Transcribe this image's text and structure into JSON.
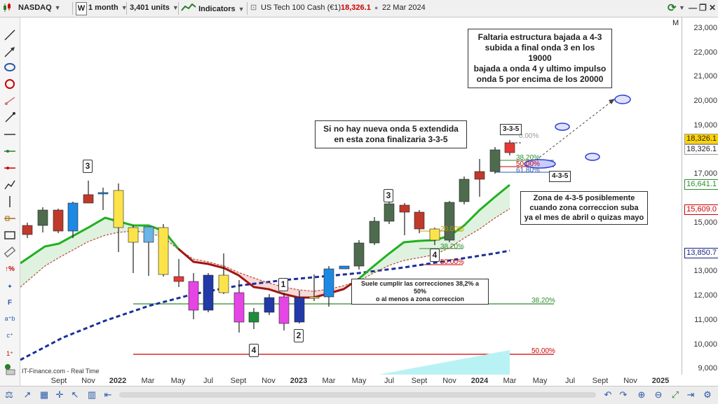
{
  "toolbar": {
    "symbol": "NASDAQ",
    "period_icon": "W",
    "timeframe": "1 month",
    "units": "3,401 units",
    "indicators": "Indicators",
    "instrument": "US Tech 100 Cash (€1)",
    "last_price": "18,326.1",
    "date": "22 Mar 2024",
    "colors": {
      "price": "#cc0000",
      "accent": "#2a5aa8"
    }
  },
  "chart": {
    "scale_marker": "M",
    "credit": "IT-Finance.com - Real Time",
    "y_ticks": [
      "23,000",
      "22,000",
      "21,000",
      "20,000",
      "19,000",
      "18,000",
      "17,000",
      "16,000",
      "15,000",
      "14,000",
      "13,000",
      "12,000",
      "11,000",
      "10,000",
      "9,000"
    ],
    "price_badges": [
      {
        "text": "18,326.1",
        "color": "#222",
        "bg": "#ffd400"
      },
      {
        "text": "18,326.1",
        "color": "#222",
        "bg": "#ffffff"
      },
      {
        "text": "16,641.1",
        "color": "#2e8b2e",
        "bg": "#ffffff"
      },
      {
        "text": "15,609.0",
        "color": "#cc0000",
        "bg": "#ffffff"
      },
      {
        "text": "13,850.7",
        "color": "#1a237e",
        "bg": "#ffffff"
      }
    ],
    "x_labels": [
      "Sept",
      "Nov",
      "2022",
      "Mar",
      "May",
      "Jul",
      "Sept",
      "Nov",
      "2023",
      "Mar",
      "May",
      "Jul",
      "Sept",
      "Nov",
      "2024",
      "Mar",
      "May",
      "Jul",
      "Sept",
      "Nov",
      "2025"
    ],
    "annotations": {
      "top_right": [
        "Faltaria estructura bajada a 4-3",
        "subida a final onda 3 en los 19000",
        "bajada a onda 4 y ultimo impulso",
        "onda 5 por encima de los 20000"
      ],
      "center": [
        "Si no hay nueva onda 5 extendida",
        "en esta zona finalizaria 3-3-5"
      ],
      "right_zone": [
        "Zona de 4-3-5 posiblemente",
        "cuando zona correccion suba",
        "ya el mes de abril o quizas mayo"
      ],
      "corrections": [
        "Suele cumplir las correcciones 38,2% a 50%",
        "o al menos a zona correccion"
      ],
      "label_335": "3-3-5",
      "label_435": "4-3-5"
    },
    "wave_labels": [
      "3",
      "4",
      "1",
      "2",
      "3",
      "4"
    ],
    "fib_labels": {
      "big_38": "38.20%",
      "big_50": "50.00%",
      "mid_20": "20.00%",
      "mid_38": "38.20%",
      "mid_50": "50.00%",
      "top_0": "0.00%",
      "top_38": "38.20%",
      "top_50": "50.00%",
      "top_618": "61.80%"
    }
  }
}
